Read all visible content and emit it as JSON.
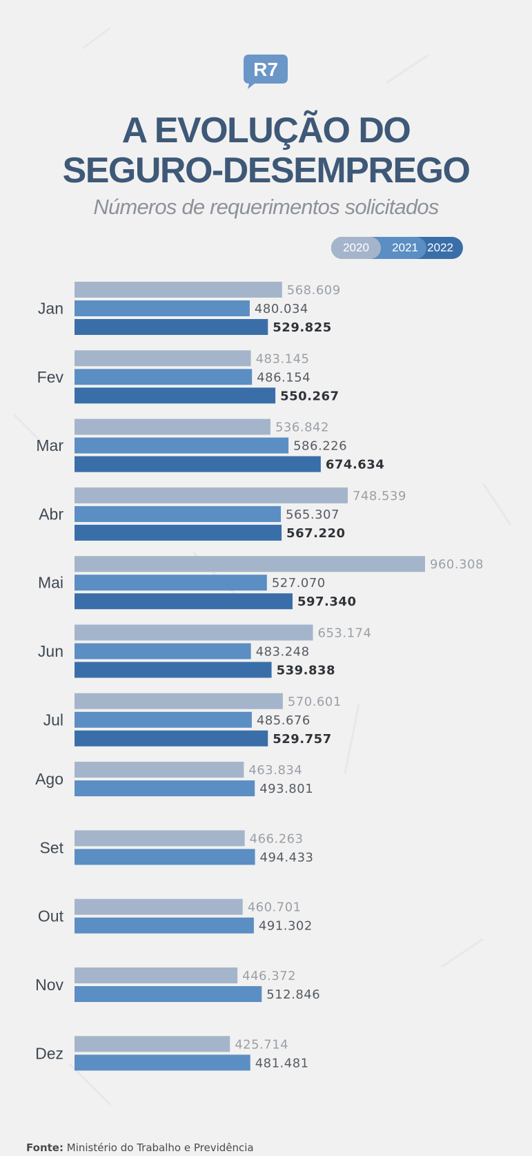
{
  "logo": {
    "text": "R7"
  },
  "header": {
    "title_line1": "A EVOLUÇÃO DO",
    "title_line2": "SEGURO-DESEMPREGO",
    "subtitle": "Números de requerimentos solicitados"
  },
  "legend": {
    "y2020": "2020",
    "y2021": "2021",
    "y2022": "2022"
  },
  "colors": {
    "y2020": "#a4b5cb",
    "y2021": "#5b8ec3",
    "y2022": "#3a6ea8",
    "label2020": "#9aa0a7",
    "label2021": "#555b62",
    "label2022": "#2f3338"
  },
  "chart_data": {
    "type": "bar",
    "orientation": "horizontal",
    "title": "A EVOLUÇÃO DO SEGURO-DESEMPREGO",
    "subtitle": "Números de requerimentos solicitados",
    "categories": [
      "Jan",
      "Fev",
      "Mar",
      "Abr",
      "Mai",
      "Jun",
      "Jul",
      "Ago",
      "Set",
      "Out",
      "Nov",
      "Dez"
    ],
    "series": [
      {
        "name": "2020",
        "values": [
          568609,
          483145,
          536842,
          748539,
          960308,
          653174,
          570601,
          463834,
          466263,
          460701,
          446372,
          425714
        ],
        "labels": [
          "568.609",
          "483.145",
          "536.842",
          "748.539",
          "960.308",
          "653.174",
          "570.601",
          "463.834",
          "466.263",
          "460.701",
          "446.372",
          "425.714"
        ]
      },
      {
        "name": "2021",
        "values": [
          480034,
          486154,
          586226,
          565307,
          527070,
          483248,
          485676,
          493801,
          494433,
          491302,
          512846,
          481481
        ],
        "labels": [
          "480.034",
          "486.154",
          "586.226",
          "565.307",
          "527.070",
          "483.248",
          "485.676",
          "493.801",
          "494.433",
          "491.302",
          "512.846",
          "481.481"
        ]
      },
      {
        "name": "2022",
        "values": [
          529825,
          550267,
          674634,
          567220,
          597340,
          539838,
          529757,
          null,
          null,
          null,
          null,
          null
        ],
        "labels": [
          "529.825",
          "550.267",
          "674.634",
          "567.220",
          "597.340",
          "539.838",
          "529.757",
          null,
          null,
          null,
          null,
          null
        ]
      }
    ],
    "xlim": [
      0,
      1000000
    ],
    "legend_position": "top-right",
    "grid": false
  },
  "footer": {
    "label": "Fonte:",
    "text": "Ministério do Trabalho e Previdência"
  }
}
